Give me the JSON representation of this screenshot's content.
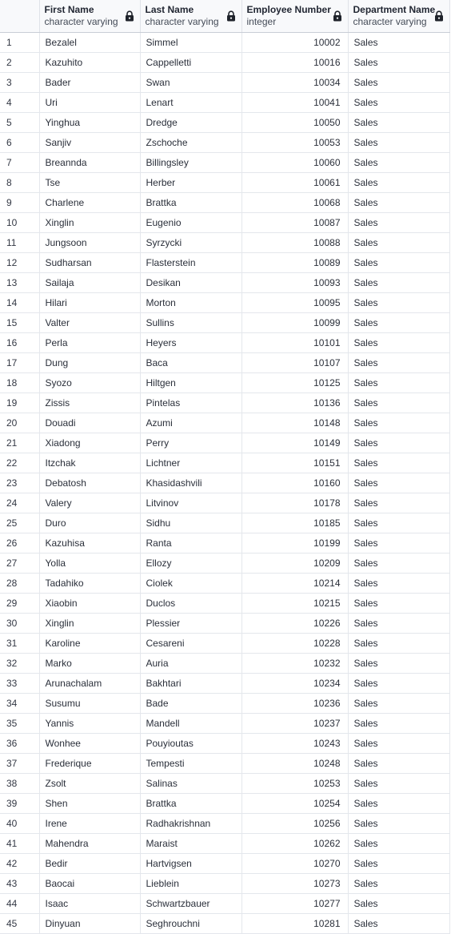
{
  "columns": [
    {
      "name": "First Name",
      "type": "character varying",
      "icon": "lock-icon"
    },
    {
      "name": "Last Name",
      "type": "character varying",
      "icon": "lock-icon"
    },
    {
      "name": "Employee Number",
      "type": "integer",
      "icon": "lock-icon"
    },
    {
      "name": "Department Name",
      "type": "character varying",
      "icon": "lock-icon"
    }
  ],
  "rows": [
    {
      "idx": "1",
      "first": "Bezalel",
      "last": "Simmel",
      "num": "10002",
      "dept": "Sales"
    },
    {
      "idx": "2",
      "first": "Kazuhito",
      "last": "Cappelletti",
      "num": "10016",
      "dept": "Sales"
    },
    {
      "idx": "3",
      "first": "Bader",
      "last": "Swan",
      "num": "10034",
      "dept": "Sales"
    },
    {
      "idx": "4",
      "first": "Uri",
      "last": "Lenart",
      "num": "10041",
      "dept": "Sales"
    },
    {
      "idx": "5",
      "first": "Yinghua",
      "last": "Dredge",
      "num": "10050",
      "dept": "Sales"
    },
    {
      "idx": "6",
      "first": "Sanjiv",
      "last": "Zschoche",
      "num": "10053",
      "dept": "Sales"
    },
    {
      "idx": "7",
      "first": "Breannda",
      "last": "Billingsley",
      "num": "10060",
      "dept": "Sales"
    },
    {
      "idx": "8",
      "first": "Tse",
      "last": "Herber",
      "num": "10061",
      "dept": "Sales"
    },
    {
      "idx": "9",
      "first": "Charlene",
      "last": "Brattka",
      "num": "10068",
      "dept": "Sales"
    },
    {
      "idx": "10",
      "first": "Xinglin",
      "last": "Eugenio",
      "num": "10087",
      "dept": "Sales"
    },
    {
      "idx": "11",
      "first": "Jungsoon",
      "last": "Syrzycki",
      "num": "10088",
      "dept": "Sales"
    },
    {
      "idx": "12",
      "first": "Sudharsan",
      "last": "Flasterstein",
      "num": "10089",
      "dept": "Sales"
    },
    {
      "idx": "13",
      "first": "Sailaja",
      "last": "Desikan",
      "num": "10093",
      "dept": "Sales"
    },
    {
      "idx": "14",
      "first": "Hilari",
      "last": "Morton",
      "num": "10095",
      "dept": "Sales"
    },
    {
      "idx": "15",
      "first": "Valter",
      "last": "Sullins",
      "num": "10099",
      "dept": "Sales"
    },
    {
      "idx": "16",
      "first": "Perla",
      "last": "Heyers",
      "num": "10101",
      "dept": "Sales"
    },
    {
      "idx": "17",
      "first": "Dung",
      "last": "Baca",
      "num": "10107",
      "dept": "Sales"
    },
    {
      "idx": "18",
      "first": "Syozo",
      "last": "Hiltgen",
      "num": "10125",
      "dept": "Sales"
    },
    {
      "idx": "19",
      "first": "Zissis",
      "last": "Pintelas",
      "num": "10136",
      "dept": "Sales"
    },
    {
      "idx": "20",
      "first": "Douadi",
      "last": "Azumi",
      "num": "10148",
      "dept": "Sales"
    },
    {
      "idx": "21",
      "first": "Xiadong",
      "last": "Perry",
      "num": "10149",
      "dept": "Sales"
    },
    {
      "idx": "22",
      "first": "Itzchak",
      "last": "Lichtner",
      "num": "10151",
      "dept": "Sales"
    },
    {
      "idx": "23",
      "first": "Debatosh",
      "last": "Khasidashvili",
      "num": "10160",
      "dept": "Sales"
    },
    {
      "idx": "24",
      "first": "Valery",
      "last": "Litvinov",
      "num": "10178",
      "dept": "Sales"
    },
    {
      "idx": "25",
      "first": "Duro",
      "last": "Sidhu",
      "num": "10185",
      "dept": "Sales"
    },
    {
      "idx": "26",
      "first": "Kazuhisa",
      "last": "Ranta",
      "num": "10199",
      "dept": "Sales"
    },
    {
      "idx": "27",
      "first": "Yolla",
      "last": "Ellozy",
      "num": "10209",
      "dept": "Sales"
    },
    {
      "idx": "28",
      "first": "Tadahiko",
      "last": "Ciolek",
      "num": "10214",
      "dept": "Sales"
    },
    {
      "idx": "29",
      "first": "Xiaobin",
      "last": "Duclos",
      "num": "10215",
      "dept": "Sales"
    },
    {
      "idx": "30",
      "first": "Xinglin",
      "last": "Plessier",
      "num": "10226",
      "dept": "Sales"
    },
    {
      "idx": "31",
      "first": "Karoline",
      "last": "Cesareni",
      "num": "10228",
      "dept": "Sales"
    },
    {
      "idx": "32",
      "first": "Marko",
      "last": "Auria",
      "num": "10232",
      "dept": "Sales"
    },
    {
      "idx": "33",
      "first": "Arunachalam",
      "last": "Bakhtari",
      "num": "10234",
      "dept": "Sales"
    },
    {
      "idx": "34",
      "first": "Susumu",
      "last": "Bade",
      "num": "10236",
      "dept": "Sales"
    },
    {
      "idx": "35",
      "first": "Yannis",
      "last": "Mandell",
      "num": "10237",
      "dept": "Sales"
    },
    {
      "idx": "36",
      "first": "Wonhee",
      "last": "Pouyioutas",
      "num": "10243",
      "dept": "Sales"
    },
    {
      "idx": "37",
      "first": "Frederique",
      "last": "Tempesti",
      "num": "10248",
      "dept": "Sales"
    },
    {
      "idx": "38",
      "first": "Zsolt",
      "last": "Salinas",
      "num": "10253",
      "dept": "Sales"
    },
    {
      "idx": "39",
      "first": "Shen",
      "last": "Brattka",
      "num": "10254",
      "dept": "Sales"
    },
    {
      "idx": "40",
      "first": "Irene",
      "last": "Radhakrishnan",
      "num": "10256",
      "dept": "Sales"
    },
    {
      "idx": "41",
      "first": "Mahendra",
      "last": "Maraist",
      "num": "10262",
      "dept": "Sales"
    },
    {
      "idx": "42",
      "first": "Bedir",
      "last": "Hartvigsen",
      "num": "10270",
      "dept": "Sales"
    },
    {
      "idx": "43",
      "first": "Baocai",
      "last": "Lieblein",
      "num": "10273",
      "dept": "Sales"
    },
    {
      "idx": "44",
      "first": "Isaac",
      "last": "Schwartzbauer",
      "num": "10277",
      "dept": "Sales"
    },
    {
      "idx": "45",
      "first": "Dinyuan",
      "last": "Seghrouchni",
      "num": "10281",
      "dept": "Sales"
    }
  ]
}
